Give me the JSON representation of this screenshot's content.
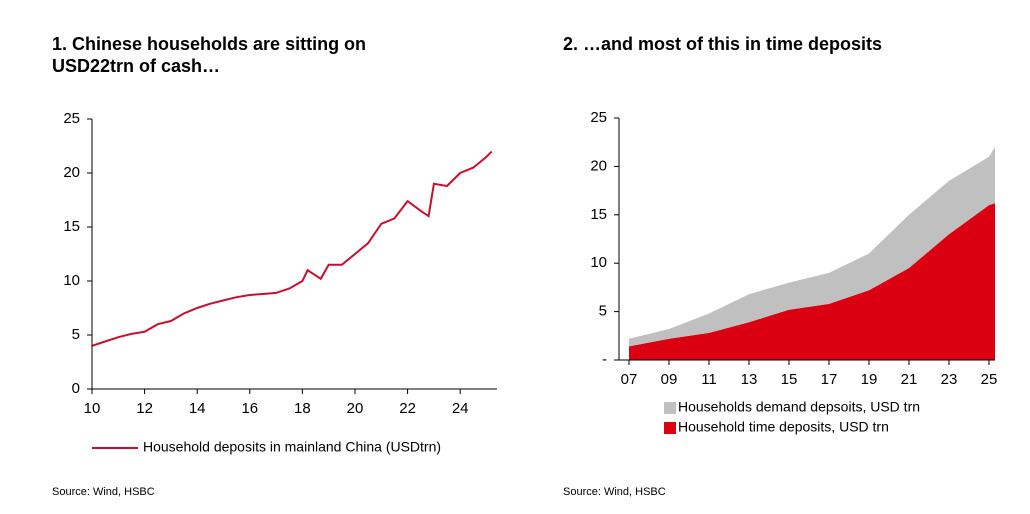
{
  "chart_data": [
    {
      "type": "line",
      "title": [
        "1. Chinese households are sitting on",
        "USD22trn of cash…"
      ],
      "source": "Source: Wind, HSBC",
      "series": [
        {
          "name": "Household deposits in mainland China (USDtrn)",
          "color": "#c8102e",
          "x": [
            2010,
            2010.5,
            2011,
            2011.5,
            2012,
            2012.5,
            2013,
            2013.5,
            2014,
            2014.5,
            2015,
            2015.5,
            2016,
            2016.5,
            2017,
            2017.5,
            2018,
            2018.2,
            2018.7,
            2019,
            2019.5,
            2020,
            2020.5,
            2021,
            2021.5,
            2022,
            2022.5,
            2022.8,
            2023,
            2023.5,
            2024,
            2024.5,
            2025,
            2025.2
          ],
          "values": [
            4.0,
            4.4,
            4.8,
            5.1,
            5.3,
            6.0,
            6.3,
            7.0,
            7.5,
            7.9,
            8.2,
            8.5,
            8.7,
            8.8,
            8.9,
            9.3,
            10.0,
            11.0,
            10.2,
            11.5,
            11.5,
            12.5,
            13.5,
            15.3,
            15.8,
            17.4,
            16.5,
            16.0,
            19.0,
            18.8,
            20.0,
            20.5,
            21.5,
            22.0
          ]
        }
      ],
      "xlim": [
        2010,
        2025.4
      ],
      "xticks": [
        {
          "value": 2010,
          "label": "10"
        },
        {
          "value": 2012,
          "label": "12"
        },
        {
          "value": 2014,
          "label": "14"
        },
        {
          "value": 2016,
          "label": "16"
        },
        {
          "value": 2018,
          "label": "18"
        },
        {
          "value": 2020,
          "label": "20"
        },
        {
          "value": 2022,
          "label": "22"
        },
        {
          "value": 2024,
          "label": "24"
        }
      ],
      "ylim": [
        0,
        25
      ],
      "yticks": [
        0,
        5,
        10,
        15,
        20,
        25
      ]
    },
    {
      "type": "area",
      "title": [
        "2. …and most of this in time deposits"
      ],
      "source": "Source: Wind, HSBC",
      "x": [
        2007,
        2009,
        2011,
        2013,
        2015,
        2017,
        2019,
        2021,
        2023,
        2025,
        2025.3
      ],
      "series": [
        {
          "name": "Households demand depsoits, USD trn",
          "color": "#c0c0c0",
          "values": [
            0.8,
            1.0,
            2.0,
            2.9,
            2.8,
            3.2,
            3.8,
            5.5,
            5.5,
            5.0,
            5.8
          ]
        },
        {
          "name": "Household time deposits, USD trn",
          "color": "#db0011",
          "values": [
            1.4,
            2.2,
            2.8,
            3.9,
            5.2,
            5.8,
            7.2,
            9.5,
            13.0,
            16.0,
            16.2
          ]
        }
      ],
      "stack_order": [
        1,
        0
      ],
      "xlim": [
        2006.5,
        2025.3
      ],
      "xticks": [
        {
          "value": 2007,
          "label": "07"
        },
        {
          "value": 2009,
          "label": "09"
        },
        {
          "value": 2011,
          "label": "11"
        },
        {
          "value": 2013,
          "label": "13"
        },
        {
          "value": 2015,
          "label": "15"
        },
        {
          "value": 2017,
          "label": "17"
        },
        {
          "value": 2019,
          "label": "19"
        },
        {
          "value": 2021,
          "label": "21"
        },
        {
          "value": 2023,
          "label": "23"
        },
        {
          "value": 2025,
          "label": "25"
        }
      ],
      "ylim": [
        0,
        25
      ],
      "yticks": [
        {
          "value": 0,
          "label": "-"
        },
        5,
        10,
        15,
        20,
        25
      ]
    }
  ]
}
